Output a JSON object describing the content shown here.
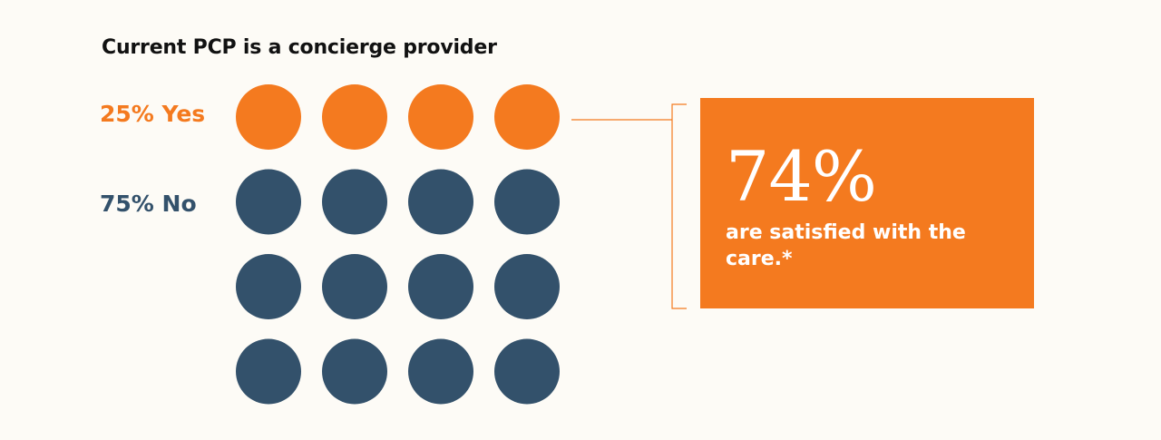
{
  "colors": {
    "yes": "#f47a1f",
    "no": "#33516b",
    "callout": "#f47a1f",
    "bracket": "#f47a1f"
  },
  "chart_data": {
    "type": "pictogram",
    "title": "Current PCP is a concierge provider",
    "total_units": 16,
    "series": [
      {
        "name": "25% Yes",
        "value": 25,
        "units": 4
      },
      {
        "name": "75% No",
        "value": 75,
        "units": 12
      }
    ]
  },
  "callout": {
    "value": "74%",
    "text": "are satisfied with the care.*"
  }
}
